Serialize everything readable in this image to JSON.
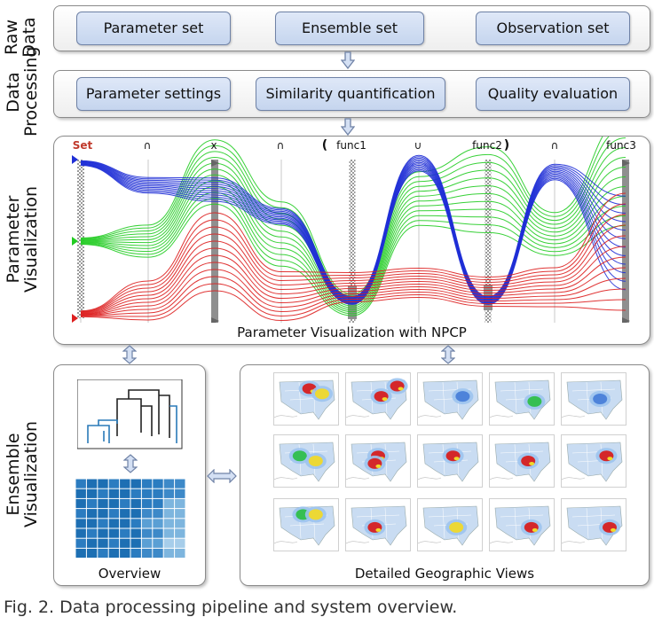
{
  "stages": {
    "raw": {
      "label_line1": "Raw",
      "label_line2": "Data",
      "boxes": [
        "Parameter set",
        "Ensemble set",
        "Observation set"
      ]
    },
    "processing": {
      "label_line1": "Data",
      "label_line2": "Processing",
      "boxes": [
        "Parameter settings",
        "Similarity quantification",
        "Quality evaluation"
      ]
    },
    "parameter": {
      "label_line1": "Parameter",
      "label_line2": "Visualization",
      "caption": "Parameter Visualization with NPCP"
    },
    "ensemble": {
      "label_line1": "Ensemble",
      "label_line2": "Visualization",
      "overview_caption": "Overview",
      "detail_caption": "Detailed Geographic Views"
    }
  },
  "npcp": {
    "set_label": "Set",
    "operators": [
      "∩",
      "x",
      "∩",
      "(",
      "func1",
      "∪",
      "func2",
      ")",
      "∩",
      "func3"
    ]
  },
  "colors": {
    "blue": "#1f2fd6",
    "green": "#22cc22",
    "red": "#dd1f1f",
    "box_fill": "#d4e0f4",
    "box_border": "#6f82a6"
  },
  "figure_caption": "Fig. 2.  Data processing pipeline and system overview."
}
